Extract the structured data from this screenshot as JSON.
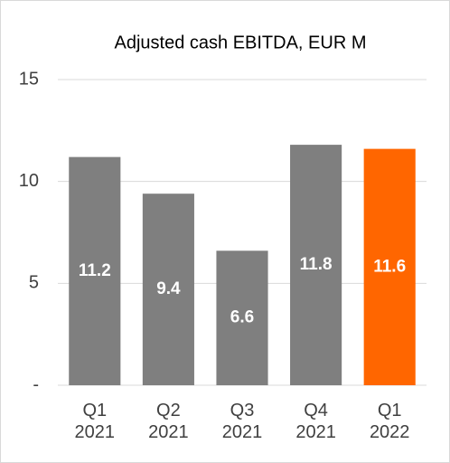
{
  "chart_data": {
    "type": "bar",
    "title": "Adjusted cash EBITDA, EUR M",
    "categories": [
      "Q1\n2021",
      "Q2\n2021",
      "Q3\n2021",
      "Q4\n2021",
      "Q1\n2022"
    ],
    "values": [
      11.2,
      9.4,
      6.6,
      11.8,
      11.6
    ],
    "colors": [
      "#7f7f7f",
      "#7f7f7f",
      "#7f7f7f",
      "#7f7f7f",
      "#ff6600"
    ],
    "ylim": [
      0,
      15
    ],
    "yticks": [
      {
        "value": 0,
        "label": "-"
      },
      5,
      10,
      15
    ],
    "grid": true
  }
}
